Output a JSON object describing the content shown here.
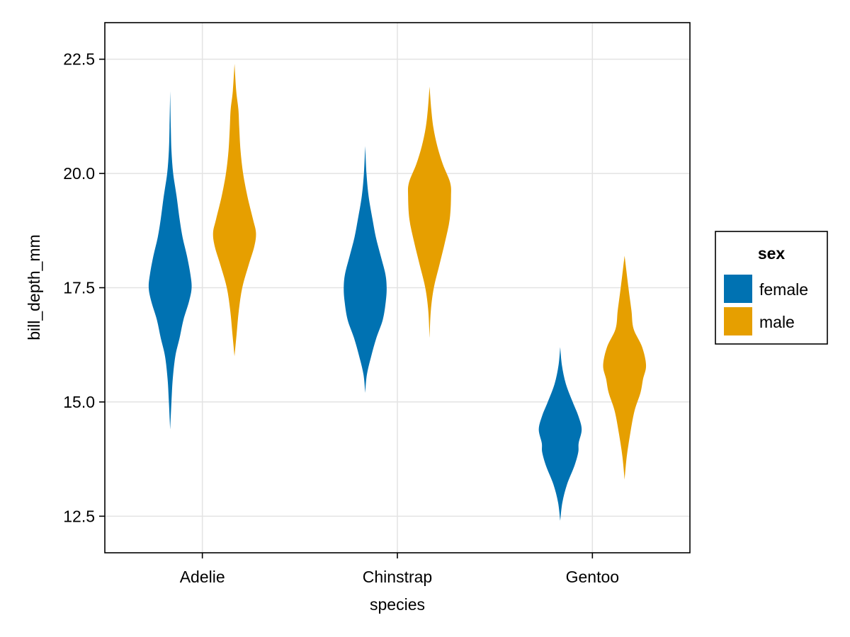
{
  "chart_data": {
    "type": "violin",
    "title": "",
    "xlabel": "species",
    "ylabel": "bill_depth_mm",
    "categories": [
      "Adelie",
      "Chinstrap",
      "Gentoo"
    ],
    "ylim": [
      11.7,
      23.3
    ],
    "yticks": [
      12.5,
      15.0,
      17.5,
      20.0,
      22.5
    ],
    "ytick_labels": [
      "12.5",
      "15.0",
      "17.5",
      "20.0",
      "22.5"
    ],
    "grid": true,
    "legend": {
      "title": "sex",
      "position": "right",
      "entries": [
        {
          "label": "female",
          "color": "#0072B2"
        },
        {
          "label": "male",
          "color": "#E69F00"
        }
      ]
    },
    "series": [
      {
        "name": "female",
        "color": "#0072B2",
        "violins": [
          {
            "category": "Adelie",
            "min": 14.4,
            "max": 21.8,
            "profile": [
              [
                14.4,
                0.0
              ],
              [
                15.0,
                0.06
              ],
              [
                15.5,
                0.12
              ],
              [
                16.0,
                0.24
              ],
              [
                16.4,
                0.44
              ],
              [
                16.8,
                0.62
              ],
              [
                17.2,
                0.88
              ],
              [
                17.5,
                1.0
              ],
              [
                17.8,
                0.94
              ],
              [
                18.2,
                0.78
              ],
              [
                18.6,
                0.58
              ],
              [
                19.0,
                0.44
              ],
              [
                19.5,
                0.3
              ],
              [
                20.0,
                0.14
              ],
              [
                20.5,
                0.06
              ],
              [
                21.0,
                0.03
              ],
              [
                21.8,
                0.0
              ]
            ]
          },
          {
            "category": "Chinstrap",
            "min": 15.2,
            "max": 20.6,
            "profile": [
              [
                15.2,
                0.0
              ],
              [
                15.6,
                0.08
              ],
              [
                16.0,
                0.28
              ],
              [
                16.4,
                0.52
              ],
              [
                16.8,
                0.82
              ],
              [
                17.2,
                0.96
              ],
              [
                17.5,
                1.0
              ],
              [
                17.8,
                0.94
              ],
              [
                18.2,
                0.72
              ],
              [
                18.6,
                0.5
              ],
              [
                19.0,
                0.34
              ],
              [
                19.5,
                0.16
              ],
              [
                20.0,
                0.06
              ],
              [
                20.6,
                0.0
              ]
            ]
          },
          {
            "category": "Gentoo",
            "min": 12.4,
            "max": 16.2,
            "profile": [
              [
                12.4,
                0.0
              ],
              [
                12.8,
                0.1
              ],
              [
                13.2,
                0.32
              ],
              [
                13.6,
                0.66
              ],
              [
                13.9,
                0.84
              ],
              [
                14.1,
                0.86
              ],
              [
                14.4,
                1.0
              ],
              [
                14.7,
                0.84
              ],
              [
                15.0,
                0.58
              ],
              [
                15.4,
                0.26
              ],
              [
                15.8,
                0.08
              ],
              [
                16.2,
                0.0
              ]
            ]
          }
        ]
      },
      {
        "name": "male",
        "color": "#E69F00",
        "violins": [
          {
            "category": "Adelie",
            "min": 16.0,
            "max": 22.4,
            "profile": [
              [
                16.0,
                0.0
              ],
              [
                16.5,
                0.1
              ],
              [
                17.0,
                0.2
              ],
              [
                17.5,
                0.36
              ],
              [
                18.0,
                0.66
              ],
              [
                18.4,
                0.92
              ],
              [
                18.7,
                1.0
              ],
              [
                19.0,
                0.86
              ],
              [
                19.5,
                0.6
              ],
              [
                20.0,
                0.4
              ],
              [
                20.5,
                0.28
              ],
              [
                21.0,
                0.22
              ],
              [
                21.4,
                0.18
              ],
              [
                21.8,
                0.08
              ],
              [
                22.4,
                0.0
              ]
            ]
          },
          {
            "category": "Chinstrap",
            "min": 16.4,
            "max": 21.9,
            "profile": [
              [
                16.4,
                0.0
              ],
              [
                17.0,
                0.06
              ],
              [
                17.5,
                0.2
              ],
              [
                18.0,
                0.46
              ],
              [
                18.5,
                0.72
              ],
              [
                19.0,
                0.94
              ],
              [
                19.5,
                1.0
              ],
              [
                19.8,
                0.96
              ],
              [
                20.2,
                0.62
              ],
              [
                20.6,
                0.36
              ],
              [
                21.0,
                0.18
              ],
              [
                21.4,
                0.08
              ],
              [
                21.9,
                0.0
              ]
            ]
          },
          {
            "category": "Gentoo",
            "min": 13.3,
            "max": 18.2,
            "profile": [
              [
                13.3,
                0.0
              ],
              [
                13.8,
                0.1
              ],
              [
                14.3,
                0.26
              ],
              [
                14.8,
                0.46
              ],
              [
                15.2,
                0.74
              ],
              [
                15.5,
                0.86
              ],
              [
                15.8,
                1.0
              ],
              [
                16.2,
                0.82
              ],
              [
                16.6,
                0.42
              ],
              [
                17.0,
                0.32
              ],
              [
                17.5,
                0.18
              ],
              [
                18.2,
                0.0
              ]
            ]
          }
        ]
      }
    ]
  }
}
